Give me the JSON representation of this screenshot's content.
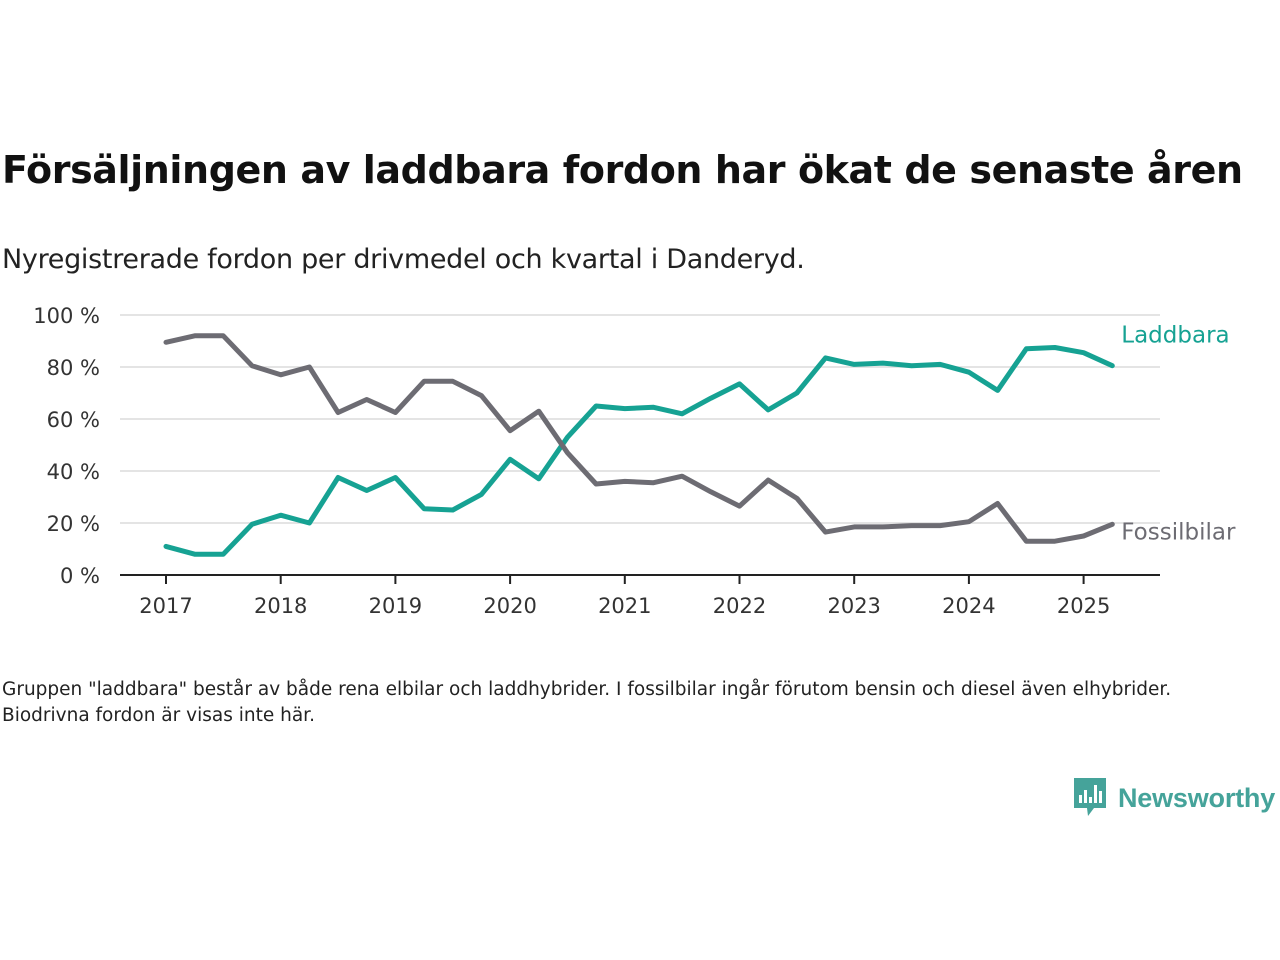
{
  "title": "Försäljningen av laddbara fordon har ökat de senaste åren",
  "subtitle": "Nyregistrerade fordon per drivmedel och kvartal i Danderyd.",
  "note": "Gruppen \"laddbara\" består av både rena elbilar och laddhybrider. I fossilbilar ingår förutom bensin och diesel även elhybrider. Biodrivna fordon är visas inte här.",
  "brand": {
    "name": "Newsworthy",
    "icon": "newsworthy-logo-icon",
    "color": "#45a39a"
  },
  "chart_data": {
    "type": "line",
    "x": [
      "2017Q1",
      "2017Q2",
      "2017Q3",
      "2017Q4",
      "2018Q1",
      "2018Q2",
      "2018Q3",
      "2018Q4",
      "2019Q1",
      "2019Q2",
      "2019Q3",
      "2019Q4",
      "2020Q1",
      "2020Q2",
      "2020Q3",
      "2020Q4",
      "2021Q1",
      "2021Q2",
      "2021Q3",
      "2021Q4",
      "2022Q1",
      "2022Q2",
      "2022Q3",
      "2022Q4",
      "2023Q1",
      "2023Q2",
      "2023Q3",
      "2023Q4",
      "2024Q1",
      "2024Q2",
      "2024Q3",
      "2024Q4",
      "2025Q1",
      "2025Q2"
    ],
    "xticks": [
      "2017",
      "2018",
      "2019",
      "2020",
      "2021",
      "2022",
      "2023",
      "2024",
      "2025"
    ],
    "yticks": [
      "0 %",
      "20 %",
      "40 %",
      "60 %",
      "80 %",
      "100 %"
    ],
    "ylim": [
      0,
      100
    ],
    "grid": true,
    "series": [
      {
        "name": "Laddbara",
        "color": "#16a293",
        "values": [
          11,
          8,
          8,
          19.5,
          23,
          20,
          37.5,
          32.5,
          37.5,
          25.5,
          25,
          31,
          44.5,
          37,
          53,
          65,
          64,
          64.5,
          62,
          68,
          73.5,
          63.5,
          70,
          83.5,
          81,
          81.5,
          80.5,
          81,
          78,
          71,
          87,
          87.5,
          85.5,
          80.5
        ]
      },
      {
        "name": "Fossilbilar",
        "color": "#6d6c73",
        "values": [
          89.5,
          92,
          92,
          80.5,
          77,
          80,
          62.5,
          67.5,
          62.5,
          74.5,
          74.5,
          69,
          55.5,
          63,
          47,
          35,
          36,
          35.5,
          38,
          32,
          26.5,
          36.5,
          29.5,
          16.5,
          18.5,
          18.5,
          19,
          19,
          20.5,
          27.5,
          13,
          13,
          15,
          19.5
        ]
      }
    ]
  }
}
